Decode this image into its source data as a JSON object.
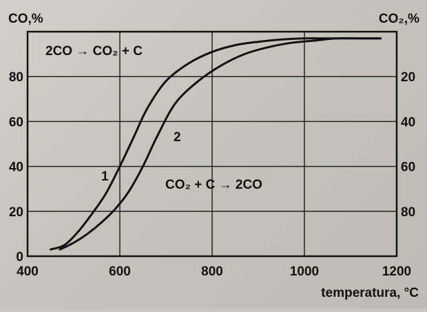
{
  "chart_data": {
    "type": "line",
    "title": "",
    "xlabel": "temperatura, °C",
    "ylabel_left": "CO,%",
    "ylabel_right": "CO₂,%",
    "xlim": [
      400,
      1200
    ],
    "ylim_left": [
      0,
      100
    ],
    "ylim_right": [
      100,
      0
    ],
    "x_ticks": [
      "400",
      "600",
      "800",
      "1000",
      "1200"
    ],
    "y_ticks_left": [
      "0",
      "20",
      "40",
      "60",
      "80"
    ],
    "y_ticks_right": [
      "20",
      "40",
      "60",
      "80"
    ],
    "grid": true,
    "annotations": {
      "top": "2CO → CO₂ + C",
      "bottom": "CO₂ + C → 2CO"
    },
    "series": [
      {
        "name": "1",
        "x": [
          450,
          480,
          510,
          540,
          570,
          600,
          630,
          660,
          700,
          750,
          800,
          850,
          900,
          950,
          1000,
          1050,
          1100,
          1150,
          1165
        ],
        "y": [
          3,
          5,
          11,
          19,
          28,
          40,
          53,
          66,
          78,
          86,
          91,
          94,
          95.5,
          96.5,
          97,
          97,
          97,
          97,
          97
        ]
      },
      {
        "name": "2",
        "x": [
          470,
          500,
          530,
          560,
          590,
          620,
          650,
          680,
          720,
          770,
          820,
          870,
          920,
          970,
          1020,
          1070,
          1120,
          1165
        ],
        "y": [
          3,
          6,
          10,
          15,
          21,
          29,
          40,
          53,
          68,
          78,
          85,
          90,
          93,
          95,
          96,
          97,
          97,
          97
        ]
      }
    ]
  }
}
